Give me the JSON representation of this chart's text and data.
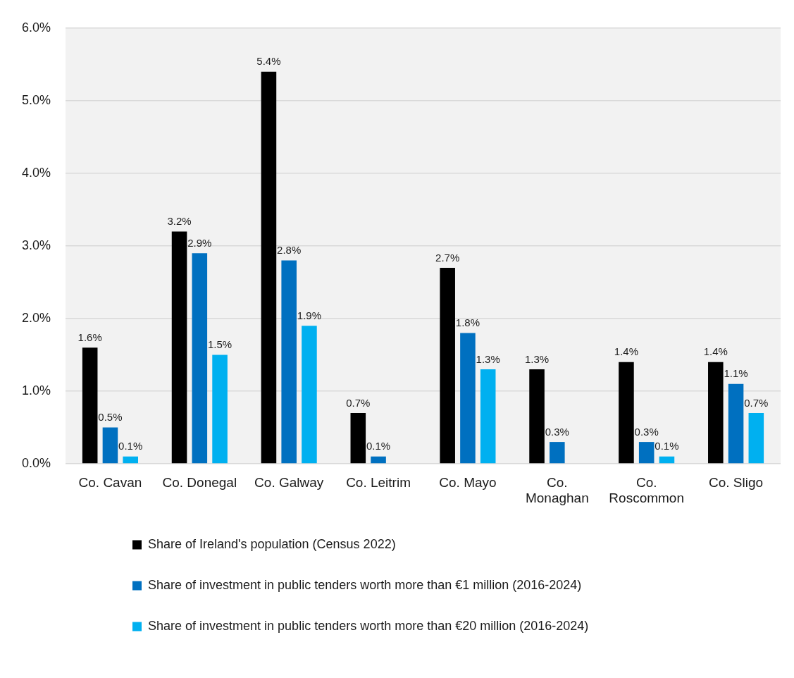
{
  "chart_data": {
    "type": "bar",
    "categories": [
      "Co. Cavan",
      "Co. Donegal",
      "Co. Galway",
      "Co. Leitrim",
      "Co. Mayo",
      "Co. Monaghan",
      "Co. Roscommon",
      "Co. Sligo"
    ],
    "series": [
      {
        "name": "Share of Ireland's population (Census 2022)",
        "color": "#000000",
        "values": [
          1.6,
          3.2,
          5.4,
          0.7,
          2.7,
          1.3,
          1.4,
          1.4
        ],
        "value_labels": [
          "1.6%",
          "3.2%",
          "5.4%",
          "0.7%",
          "2.7%",
          "1.3%",
          "1.4%",
          "1.4%"
        ]
      },
      {
        "name": "Share of investment in public tenders worth more than €1 million (2016-2024)",
        "color": "#0070c0",
        "values": [
          0.5,
          2.9,
          2.8,
          0.1,
          1.8,
          0.3,
          0.3,
          1.1
        ],
        "value_labels": [
          "0.5%",
          "2.9%",
          "2.8%",
          "0.1%",
          "1.8%",
          "0.3%",
          "0.3%",
          "1.1%"
        ]
      },
      {
        "name": "Share of investment in public tenders worth more than €20 million (2016-2024)",
        "color": "#00b0f0",
        "values": [
          0.1,
          1.5,
          1.9,
          null,
          1.3,
          null,
          0.1,
          0.7
        ],
        "value_labels": [
          "0.1%",
          "1.5%",
          "1.9%",
          null,
          "1.3%",
          null,
          "0.1%",
          "0.7%"
        ]
      }
    ],
    "ylim": [
      0,
      6
    ],
    "yticks": [
      {
        "value": 0,
        "label": "0.0%"
      },
      {
        "value": 1,
        "label": "1.0%"
      },
      {
        "value": 2,
        "label": "2.0%"
      },
      {
        "value": 3,
        "label": "3.0%"
      },
      {
        "value": 4,
        "label": "4.0%"
      },
      {
        "value": 5,
        "label": "5.0%"
      },
      {
        "value": 6,
        "label": "6.0%"
      }
    ],
    "grid": "y",
    "legend": "bottom"
  }
}
